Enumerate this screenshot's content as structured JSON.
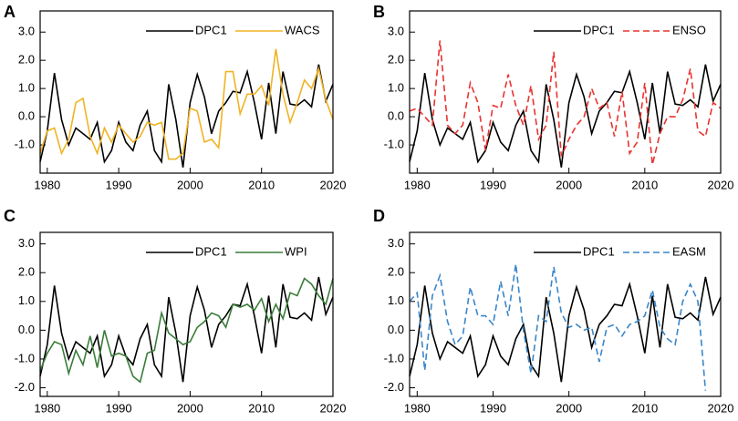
{
  "chart_data": [
    {
      "type": "line",
      "label": "A",
      "legend": "top",
      "x": [
        1979,
        1980,
        1981,
        1982,
        1983,
        1984,
        1985,
        1986,
        1987,
        1988,
        1989,
        1990,
        1991,
        1992,
        1993,
        1994,
        1995,
        1996,
        1997,
        1998,
        1999,
        2000,
        2001,
        2002,
        2003,
        2004,
        2005,
        2006,
        2007,
        2008,
        2009,
        2010,
        2011,
        2012,
        2013,
        2014,
        2015,
        2016,
        2017,
        2018,
        2019,
        2020
      ],
      "xlim": [
        1979,
        2020
      ],
      "xticks": [
        1980,
        1990,
        2000,
        2010,
        2020
      ],
      "ylim": [
        -2.0,
        3.75
      ],
      "yticks": [
        {
          "value": 3,
          "label": "3.0"
        },
        {
          "value": 2,
          "label": "2.0"
        },
        {
          "value": 1,
          "label": "1.0"
        },
        {
          "value": 0,
          "label": "0.0"
        },
        {
          "value": -1,
          "label": "-1.0"
        }
      ],
      "series": [
        {
          "name": "DPC1",
          "color": "#000000",
          "dash": false,
          "values": [
            -1.6,
            -0.5,
            1.55,
            -0.1,
            -1.0,
            -0.4,
            -0.6,
            -0.8,
            -0.2,
            -1.6,
            -1.2,
            -0.2,
            -0.9,
            -1.2,
            -0.3,
            0.2,
            -1.2,
            -1.6,
            1.15,
            -0.1,
            -1.8,
            0.5,
            1.5,
            0.7,
            -0.6,
            0.2,
            0.5,
            0.9,
            0.85,
            1.6,
            0.5,
            -0.8,
            1.2,
            -0.6,
            1.6,
            0.45,
            0.4,
            0.6,
            0.35,
            1.85,
            0.55,
            1.15
          ]
        },
        {
          "name": "WACS",
          "color": "#f0b323",
          "dash": false,
          "values": [
            -1.3,
            -0.5,
            -0.4,
            -1.3,
            -0.8,
            0.5,
            0.65,
            -0.7,
            -1.3,
            -0.4,
            -0.9,
            -0.3,
            -0.6,
            -0.9,
            -0.7,
            -0.2,
            -0.3,
            -0.2,
            -1.5,
            -1.5,
            -1.3,
            0.3,
            0.2,
            -0.9,
            -0.8,
            -1.1,
            1.6,
            1.6,
            0.1,
            0.8,
            0.8,
            1.1,
            0.4,
            2.4,
            0.8,
            -0.2,
            0.5,
            1.3,
            1.0,
            1.7,
            0.6,
            -0.1
          ]
        }
      ]
    },
    {
      "type": "line",
      "label": "B",
      "legend": "top",
      "x": [
        1979,
        1980,
        1981,
        1982,
        1983,
        1984,
        1985,
        1986,
        1987,
        1988,
        1989,
        1990,
        1991,
        1992,
        1993,
        1994,
        1995,
        1996,
        1997,
        1998,
        1999,
        2000,
        2001,
        2002,
        2003,
        2004,
        2005,
        2006,
        2007,
        2008,
        2009,
        2010,
        2011,
        2012,
        2013,
        2014,
        2015,
        2016,
        2017,
        2018,
        2019,
        2020
      ],
      "xlim": [
        1979,
        2020
      ],
      "xticks": [
        1980,
        1990,
        2000,
        2010,
        2020
      ],
      "ylim": [
        -2.0,
        3.75
      ],
      "yticks": [
        {
          "value": 3,
          "label": "3.0"
        },
        {
          "value": 2,
          "label": "2.0"
        },
        {
          "value": 1,
          "label": "1.0"
        },
        {
          "value": 0,
          "label": "0.0"
        },
        {
          "value": -1,
          "label": "-1.0"
        }
      ],
      "series": [
        {
          "name": "DPC1",
          "color": "#000000",
          "dash": false,
          "values": [
            -1.6,
            -0.5,
            1.55,
            -0.1,
            -1.0,
            -0.4,
            -0.6,
            -0.8,
            -0.2,
            -1.6,
            -1.2,
            -0.2,
            -0.9,
            -1.2,
            -0.3,
            0.2,
            -1.2,
            -1.6,
            1.15,
            -0.1,
            -1.8,
            0.5,
            1.5,
            0.7,
            -0.6,
            0.2,
            0.5,
            0.9,
            0.85,
            1.6,
            0.5,
            -0.8,
            1.2,
            -0.6,
            1.6,
            0.45,
            0.4,
            0.6,
            0.35,
            1.85,
            0.55,
            1.15
          ]
        },
        {
          "name": "ENSO",
          "color": "#e8332f",
          "dash": true,
          "values": [
            0.2,
            0.3,
            0.0,
            -0.3,
            2.7,
            -0.3,
            -0.6,
            -0.3,
            1.2,
            0.5,
            -1.2,
            0.4,
            0.3,
            1.5,
            0.4,
            -0.3,
            1.1,
            -0.8,
            -0.3,
            2.3,
            -1.4,
            -0.8,
            -0.3,
            0.0,
            1.0,
            0.3,
            0.5,
            -0.7,
            0.9,
            -1.3,
            -0.9,
            1.2,
            -1.7,
            -0.6,
            0.0,
            0.0,
            0.6,
            1.7,
            -0.5,
            -0.7,
            0.5,
            0.3
          ]
        }
      ]
    },
    {
      "type": "line",
      "label": "C",
      "legend": "top",
      "x": [
        1979,
        1980,
        1981,
        1982,
        1983,
        1984,
        1985,
        1986,
        1987,
        1988,
        1989,
        1990,
        1991,
        1992,
        1993,
        1994,
        1995,
        1996,
        1997,
        1998,
        1999,
        2000,
        2001,
        2002,
        2003,
        2004,
        2005,
        2006,
        2007,
        2008,
        2009,
        2010,
        2011,
        2012,
        2013,
        2014,
        2015,
        2016,
        2017,
        2018,
        2019,
        2020
      ],
      "xlim": [
        1979,
        2020
      ],
      "xticks": [
        1980,
        1990,
        2000,
        2010,
        2020
      ],
      "ylim": [
        -2.3,
        3.4
      ],
      "yticks": [
        {
          "value": 3,
          "label": "3.0"
        },
        {
          "value": 2,
          "label": "2.0"
        },
        {
          "value": 1,
          "label": "1.0"
        },
        {
          "value": 0,
          "label": "0.0"
        },
        {
          "value": -1,
          "label": "-1.0"
        },
        {
          "value": -2,
          "label": "-2.0"
        }
      ],
      "series": [
        {
          "name": "DPC1",
          "color": "#000000",
          "dash": false,
          "values": [
            -1.6,
            -0.5,
            1.55,
            -0.1,
            -1.0,
            -0.4,
            -0.6,
            -0.8,
            -0.2,
            -1.6,
            -1.2,
            -0.2,
            -0.9,
            -1.2,
            -0.3,
            0.2,
            -1.2,
            -1.6,
            1.15,
            -0.1,
            -1.8,
            0.5,
            1.5,
            0.7,
            -0.6,
            0.2,
            0.5,
            0.9,
            0.85,
            1.6,
            0.5,
            -0.8,
            1.2,
            -0.6,
            1.6,
            0.45,
            0.4,
            0.6,
            0.35,
            1.85,
            0.55,
            1.15
          ]
        },
        {
          "name": "WPI",
          "color": "#3a7d3a",
          "dash": false,
          "values": [
            -1.4,
            -0.8,
            -0.4,
            -0.5,
            -1.5,
            -0.7,
            -1.2,
            -0.2,
            -1.3,
            0.0,
            -0.9,
            -0.8,
            -0.9,
            -1.6,
            -1.8,
            -0.8,
            -0.7,
            0.6,
            -0.1,
            -0.3,
            -0.5,
            -0.4,
            0.1,
            0.3,
            0.6,
            0.5,
            0.1,
            0.9,
            0.8,
            0.9,
            0.7,
            1.1,
            0.3,
            0.9,
            0.4,
            1.3,
            1.2,
            1.8,
            1.6,
            1.2,
            0.9,
            1.8
          ]
        }
      ]
    },
    {
      "type": "line",
      "label": "D",
      "legend": "top",
      "x": [
        1979,
        1980,
        1981,
        1982,
        1983,
        1984,
        1985,
        1986,
        1987,
        1988,
        1989,
        1990,
        1991,
        1992,
        1993,
        1994,
        1995,
        1996,
        1997,
        1998,
        1999,
        2000,
        2001,
        2002,
        2003,
        2004,
        2005,
        2006,
        2007,
        2008,
        2009,
        2010,
        2011,
        2012,
        2013,
        2014,
        2015,
        2016,
        2017,
        2018,
        2019,
        2020
      ],
      "xlim": [
        1979,
        2020
      ],
      "xticks": [
        1980,
        1990,
        2000,
        2010,
        2020
      ],
      "ylim": [
        -2.3,
        3.4
      ],
      "yticks": [
        {
          "value": 3,
          "label": "3.0"
        },
        {
          "value": 2,
          "label": "2.0"
        },
        {
          "value": 1,
          "label": "1.0"
        },
        {
          "value": 0,
          "label": "0.0"
        },
        {
          "value": -1,
          "label": "-1.0"
        },
        {
          "value": -2,
          "label": "-2.0"
        }
      ],
      "series": [
        {
          "name": "DPC1",
          "color": "#000000",
          "dash": false,
          "values": [
            -1.6,
            -0.5,
            1.55,
            -0.1,
            -1.0,
            -0.4,
            -0.6,
            -0.8,
            -0.2,
            -1.6,
            -1.2,
            -0.2,
            -0.9,
            -1.2,
            -0.3,
            0.2,
            -1.2,
            -1.6,
            1.15,
            -0.1,
            -1.8,
            0.5,
            1.5,
            0.7,
            -0.6,
            0.2,
            0.5,
            0.9,
            0.85,
            1.6,
            0.5,
            -0.8,
            1.2,
            -0.6,
            1.6,
            0.45,
            0.4,
            0.6,
            0.35,
            1.85,
            0.55,
            1.15
          ]
        },
        {
          "name": "EASM",
          "color": "#3a86c8",
          "dash": true,
          "values": [
            1.0,
            1.3,
            -1.4,
            1.2,
            1.9,
            0.3,
            -0.5,
            -0.2,
            1.5,
            0.5,
            0.5,
            0.2,
            1.7,
            0.5,
            2.3,
            0.0,
            -1.5,
            0.5,
            0.3,
            2.2,
            0.6,
            0.1,
            0.2,
            0.0,
            0.1,
            -1.1,
            0.1,
            0.2,
            -0.2,
            0.2,
            0.3,
            0.5,
            1.4,
            0.1,
            -0.3,
            -0.5,
            1.0,
            1.6,
            1.0,
            -2.1,
            null,
            null
          ]
        }
      ]
    }
  ]
}
